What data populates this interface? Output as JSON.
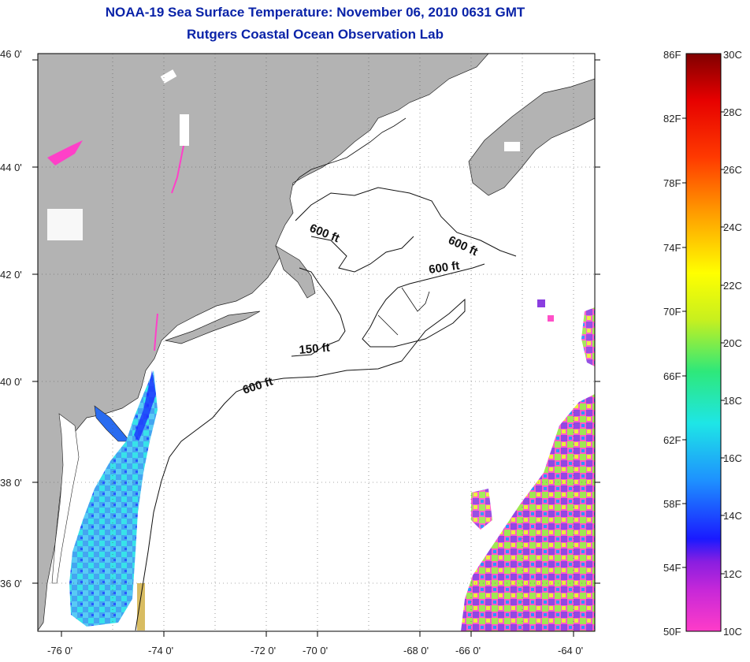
{
  "title": {
    "line1": "NOAA-19 Sea Surface Temperature:  November 06, 2010 0631 GMT",
    "line2": "Rutgers Coastal Ocean Observation Lab"
  },
  "axes": {
    "lat_labels": [
      "46 0'",
      "44 0'",
      "42 0'",
      "40 0'",
      "38 0'",
      "36 0'"
    ],
    "lon_labels": [
      "-76 0'",
      "-74 0'",
      "-72 0'",
      "-70 0'",
      "-68 0'",
      "-66 0'",
      "-64 0'"
    ]
  },
  "contours": {
    "depth_600_a": "600 ft",
    "depth_600_b": "600 ft",
    "depth_600_c": "600 ft",
    "depth_600_d": "600 ft",
    "depth_150": "150 ft"
  },
  "colorbar": {
    "fahrenheit": [
      "86F",
      "82F",
      "78F",
      "74F",
      "70F",
      "66F",
      "62F",
      "58F",
      "54F",
      "50F"
    ],
    "celsius": [
      "30C",
      "28C",
      "26C",
      "24C",
      "22C",
      "20C",
      "18C",
      "16C",
      "14C",
      "12C",
      "10C"
    ],
    "colors": [
      "#ff3cc8",
      "#8a1ee0",
      "#1a1aff",
      "#1e90ff",
      "#1ee6e6",
      "#2ee87a",
      "#c8f01e",
      "#ffff00",
      "#ffa000",
      "#ff3a00",
      "#e60000",
      "#800000"
    ]
  },
  "colors": {
    "land": "#b3b3b3",
    "no_data": "#ffffff",
    "title": "#0a23a8"
  }
}
